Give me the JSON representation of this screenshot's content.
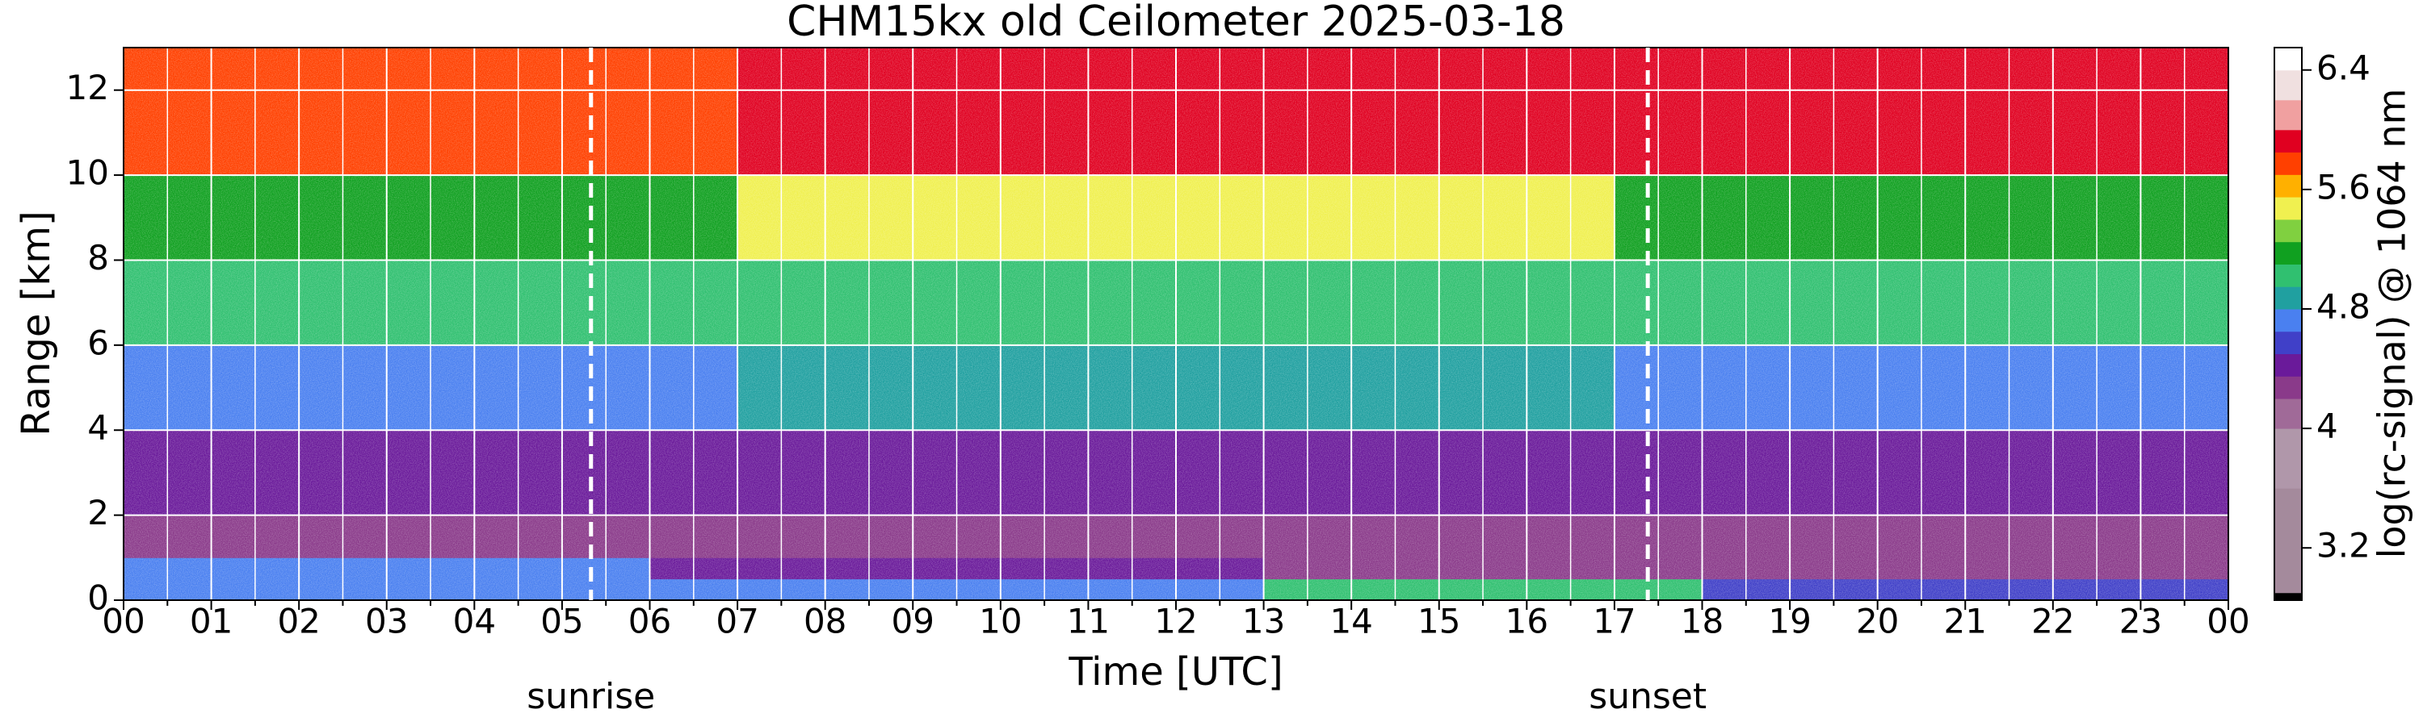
{
  "chart_data": {
    "type": "heatmap",
    "title": "CHM15kx old Ceilometer 2025-03-18",
    "xlabel": "Time [UTC]",
    "ylabel": "Range [km]",
    "colorbar_label": "log(rc-signal) @ 1064 nm",
    "xlim": [
      0,
      24
    ],
    "ylim": [
      0,
      13
    ],
    "xticks": [
      {
        "value": 0,
        "label": "00"
      },
      {
        "value": 1,
        "label": "01"
      },
      {
        "value": 2,
        "label": "02"
      },
      {
        "value": 3,
        "label": "03"
      },
      {
        "value": 4,
        "label": "04"
      },
      {
        "value": 5,
        "label": "05"
      },
      {
        "value": 6,
        "label": "06"
      },
      {
        "value": 7,
        "label": "07"
      },
      {
        "value": 8,
        "label": "08"
      },
      {
        "value": 9,
        "label": "09"
      },
      {
        "value": 10,
        "label": "10"
      },
      {
        "value": 11,
        "label": "11"
      },
      {
        "value": 12,
        "label": "12"
      },
      {
        "value": 13,
        "label": "13"
      },
      {
        "value": 14,
        "label": "14"
      },
      {
        "value": 15,
        "label": "15"
      },
      {
        "value": 16,
        "label": "16"
      },
      {
        "value": 17,
        "label": "17"
      },
      {
        "value": 18,
        "label": "18"
      },
      {
        "value": 19,
        "label": "19"
      },
      {
        "value": 20,
        "label": "20"
      },
      {
        "value": 21,
        "label": "21"
      },
      {
        "value": 22,
        "label": "22"
      },
      {
        "value": 23,
        "label": "23"
      },
      {
        "value": 24,
        "label": "00"
      }
    ],
    "yticks": [
      0,
      2,
      4,
      6,
      8,
      10,
      12
    ],
    "grid": true,
    "grid_color": "#ffffff",
    "clim": [
      2.85,
      6.55
    ],
    "colorbar_ticks": [
      3.2,
      4,
      4.8,
      5.6,
      6.4
    ],
    "colormap": [
      [
        2.85,
        "#000000"
      ],
      [
        2.9,
        "#a48a9c"
      ],
      [
        3.6,
        "#b097aa"
      ],
      [
        4.0,
        "#a06a98"
      ],
      [
        4.2,
        "#8a3a8a"
      ],
      [
        4.35,
        "#6a1a9a"
      ],
      [
        4.5,
        "#4040c8"
      ],
      [
        4.65,
        "#4a80f0"
      ],
      [
        4.8,
        "#20a0a0"
      ],
      [
        4.95,
        "#30c070"
      ],
      [
        5.1,
        "#10a020"
      ],
      [
        5.25,
        "#80d040"
      ],
      [
        5.4,
        "#f0f050"
      ],
      [
        5.55,
        "#ffb000"
      ],
      [
        5.7,
        "#ff4000"
      ],
      [
        5.85,
        "#e00020"
      ],
      [
        6.0,
        "#f0a0a0"
      ],
      [
        6.2,
        "#f0e0e0"
      ],
      [
        6.4,
        "#ffffff"
      ]
    ],
    "x_edges": [
      0,
      1,
      2,
      3,
      4,
      5,
      6,
      7,
      8,
      9,
      10,
      11,
      12,
      13,
      14,
      15,
      16,
      17,
      18,
      19,
      20,
      21,
      22,
      23,
      24
    ],
    "y_edges": [
      0,
      0.5,
      1,
      2,
      4,
      6,
      8,
      10,
      13
    ],
    "z": [
      [
        4.65,
        4.65,
        4.65,
        4.65,
        4.65,
        4.65,
        4.65,
        4.65,
        4.65,
        4.65,
        4.65,
        4.65,
        4.65,
        4.95,
        4.95,
        4.95,
        4.95,
        4.95,
        4.6,
        4.6,
        4.6,
        4.6,
        4.6,
        4.6
      ],
      [
        4.65,
        4.65,
        4.65,
        4.65,
        4.65,
        4.65,
        4.4,
        4.4,
        4.4,
        4.4,
        4.4,
        4.4,
        4.4,
        4.3,
        4.3,
        4.3,
        4.3,
        4.3,
        4.25,
        4.25,
        4.25,
        4.25,
        4.25,
        4.25
      ],
      [
        4.3,
        4.3,
        4.3,
        4.3,
        4.3,
        4.3,
        4.3,
        4.3,
        4.3,
        4.3,
        4.3,
        4.3,
        4.3,
        4.3,
        4.3,
        4.3,
        4.3,
        4.3,
        4.3,
        4.3,
        4.3,
        4.3,
        4.3,
        4.3
      ],
      [
        4.45,
        4.45,
        4.45,
        4.45,
        4.45,
        4.45,
        4.45,
        4.45,
        4.45,
        4.45,
        4.45,
        4.45,
        4.45,
        4.45,
        4.45,
        4.45,
        4.45,
        4.45,
        4.45,
        4.45,
        4.45,
        4.45,
        4.45,
        4.45
      ],
      [
        4.7,
        4.7,
        4.7,
        4.7,
        4.7,
        4.7,
        4.7,
        4.8,
        4.8,
        4.8,
        4.8,
        4.8,
        4.8,
        4.8,
        4.8,
        4.8,
        4.8,
        4.7,
        4.7,
        4.7,
        4.7,
        4.7,
        4.7,
        4.7
      ],
      [
        5.0,
        5.0,
        5.0,
        5.0,
        5.0,
        5.0,
        5.0,
        5.05,
        5.05,
        5.05,
        5.05,
        5.05,
        5.05,
        5.05,
        5.05,
        5.05,
        5.05,
        5.0,
        5.0,
        5.0,
        5.0,
        5.0,
        5.0,
        5.0
      ],
      [
        5.15,
        5.15,
        5.15,
        5.15,
        5.15,
        5.15,
        5.15,
        5.5,
        5.5,
        5.5,
        5.5,
        5.5,
        5.5,
        5.5,
        5.5,
        5.5,
        5.5,
        5.2,
        5.2,
        5.2,
        5.2,
        5.2,
        5.2,
        5.2
      ],
      [
        5.8,
        5.8,
        5.8,
        5.8,
        5.8,
        5.8,
        5.8,
        5.95,
        5.95,
        5.95,
        5.95,
        5.95,
        5.95,
        5.95,
        5.95,
        5.95,
        5.95,
        5.85,
        5.85,
        5.85,
        5.85,
        5.85,
        5.85,
        5.85
      ]
    ],
    "annotations": [
      {
        "text": "sunrise",
        "x": 5.33
      },
      {
        "text": "sunset",
        "x": 17.38
      }
    ]
  }
}
